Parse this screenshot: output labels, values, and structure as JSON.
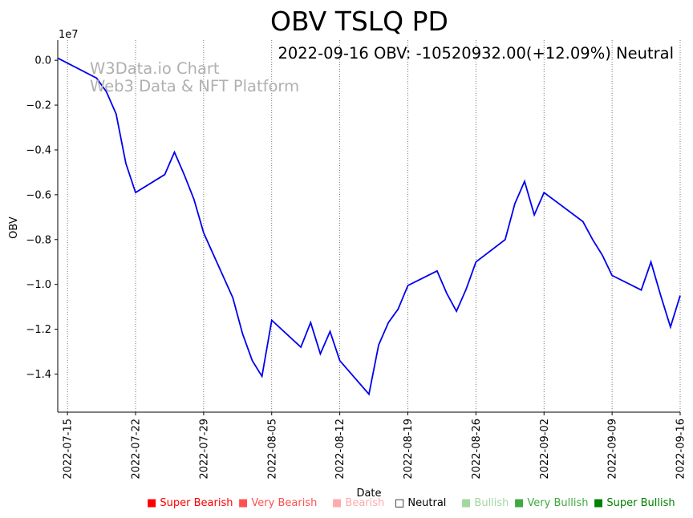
{
  "chart_data": {
    "type": "line",
    "title": "OBV TSLQ PD",
    "annotation": "2022-09-16 OBV: -10520932.00(+12.09%) Neutral",
    "watermark_line1": "W3Data.io Chart",
    "watermark_line2": "Web3 Data & NFT Platform",
    "xlabel": "Date",
    "ylabel": "OBV",
    "y_scale_label": "1e7",
    "ylim": [
      -1.57,
      0.09
    ],
    "y_ticks": [
      0.0,
      -0.2,
      -0.4,
      -0.6,
      -0.8,
      -1.0,
      -1.2,
      -1.4
    ],
    "y_tick_labels": [
      "0.0",
      "−0.2",
      "−0.4",
      "−0.6",
      "−0.8",
      "−1.0",
      "−1.2",
      "−1.4"
    ],
    "x_start": "2022-07-14",
    "x_end": "2022-09-16",
    "x_ticks": [
      "2022-07-15",
      "2022-07-22",
      "2022-07-29",
      "2022-08-05",
      "2022-08-12",
      "2022-08-19",
      "2022-08-26",
      "2022-09-02",
      "2022-09-09",
      "2022-09-16"
    ],
    "line_color": "#0000ee",
    "series": [
      {
        "name": "OBV",
        "x": [
          "2022-07-14",
          "2022-07-18",
          "2022-07-19",
          "2022-07-20",
          "2022-07-21",
          "2022-07-22",
          "2022-07-25",
          "2022-07-26",
          "2022-07-27",
          "2022-07-28",
          "2022-07-29",
          "2022-08-01",
          "2022-08-02",
          "2022-08-03",
          "2022-08-04",
          "2022-08-05",
          "2022-08-08",
          "2022-08-09",
          "2022-08-10",
          "2022-08-11",
          "2022-08-12",
          "2022-08-15",
          "2022-08-16",
          "2022-08-17",
          "2022-08-18",
          "2022-08-19",
          "2022-08-22",
          "2022-08-23",
          "2022-08-24",
          "2022-08-25",
          "2022-08-26",
          "2022-08-29",
          "2022-08-30",
          "2022-08-31",
          "2022-09-01",
          "2022-09-02",
          "2022-09-06",
          "2022-09-07",
          "2022-09-08",
          "2022-09-09",
          "2022-09-12",
          "2022-09-13",
          "2022-09-14",
          "2022-09-15",
          "2022-09-16"
        ],
        "values": [
          0.01,
          -0.08,
          -0.14,
          -0.24,
          -0.46,
          -0.59,
          -0.51,
          -0.41,
          -0.51,
          -0.62,
          -0.77,
          -1.06,
          -1.22,
          -1.34,
          -1.41,
          -1.16,
          -1.28,
          -1.17,
          -1.31,
          -1.21,
          -1.34,
          -1.49,
          -1.27,
          -1.17,
          -1.11,
          -1.005,
          -0.94,
          -1.04,
          -1.12,
          -1.02,
          -0.9,
          -0.8,
          -0.64,
          -0.54,
          -0.69,
          -0.59,
          -0.72,
          -0.8,
          -0.87,
          -0.96,
          -1.025,
          -0.9,
          -1.05,
          -1.19,
          -1.05
        ]
      }
    ],
    "legend": [
      {
        "label": "■ Super Bearish",
        "color": "#ff0000"
      },
      {
        "label": "■ Very Bearish",
        "color": "#ff5050"
      },
      {
        "label": "■ Bearish",
        "color": "#ffaaaa"
      },
      {
        "label": "□ Neutral",
        "color": "#000000"
      },
      {
        "label": "■ Bullish",
        "color": "#a0d8a0"
      },
      {
        "label": "■ Very Bullish",
        "color": "#40a840"
      },
      {
        "label": "■ Super Bullish",
        "color": "#008000"
      }
    ]
  }
}
